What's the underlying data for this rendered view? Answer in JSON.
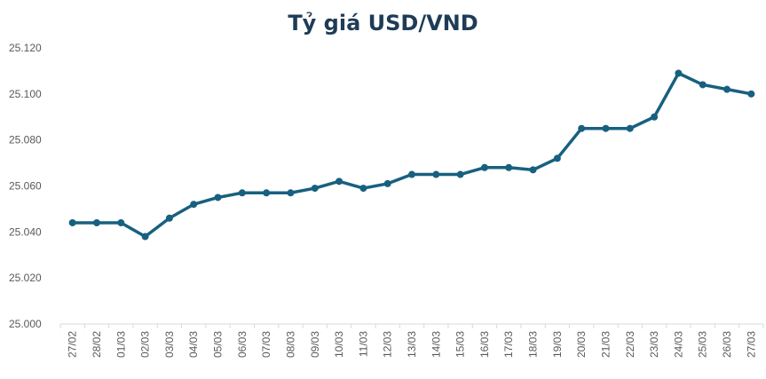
{
  "chart_data": {
    "type": "line",
    "title": "Tỷ giá USD/VND",
    "xlabel": "",
    "ylabel": "",
    "ylim": [
      25000,
      25120
    ],
    "yticks": [
      "25.000",
      "25.020",
      "25.040",
      "25.060",
      "25.080",
      "25.100",
      "25.120"
    ],
    "ytick_values": [
      25000,
      25020,
      25040,
      25060,
      25080,
      25100,
      25120
    ],
    "grid": false,
    "color": "#18607f",
    "categories": [
      "27/02",
      "28/02",
      "01/03",
      "02/03",
      "03/03",
      "04/03",
      "05/03",
      "06/03",
      "07/03",
      "08/03",
      "09/03",
      "10/03",
      "11/03",
      "12/03",
      "13/03",
      "14/03",
      "15/03",
      "16/03",
      "17/03",
      "18/03",
      "19/03",
      "20/03",
      "21/03",
      "22/03",
      "23/03",
      "24/03",
      "25/03",
      "26/03",
      "27/03"
    ],
    "series": [
      {
        "name": "USD/VND",
        "values": [
          25044,
          25044,
          25044,
          25038,
          25046,
          25052,
          25055,
          25057,
          25057,
          25057,
          25059,
          25062,
          25059,
          25061,
          25065,
          25065,
          25065,
          25068,
          25068,
          25067,
          25072,
          25085,
          25085,
          25085,
          25090,
          25109,
          25104,
          25102,
          25100
        ]
      }
    ]
  }
}
